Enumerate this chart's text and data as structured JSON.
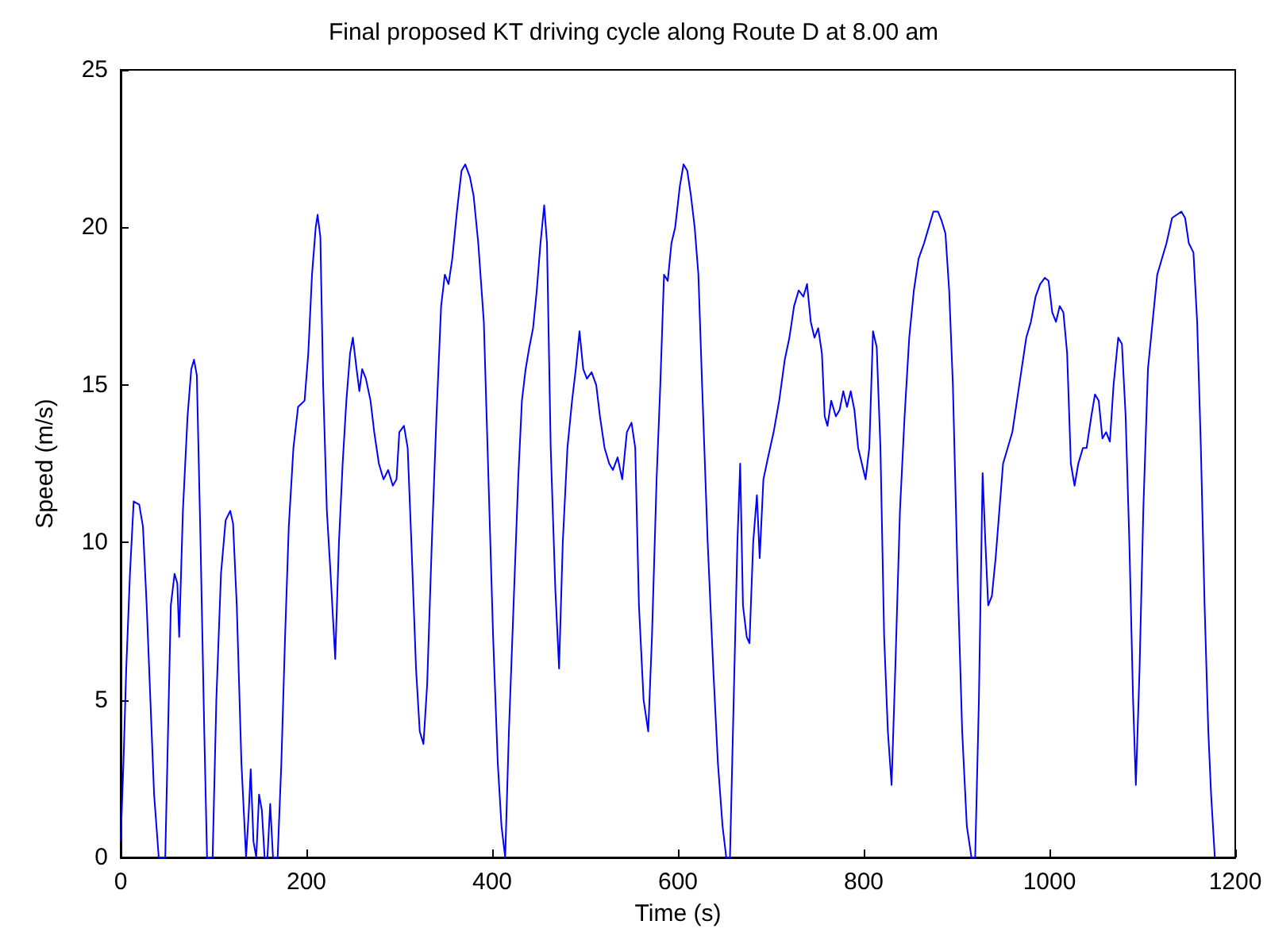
{
  "chart_data": {
    "type": "line",
    "title": "Final proposed KT driving cycle along Route D at 8.00 am",
    "xlabel": "Time (s)",
    "ylabel": "Speed (m/s)",
    "color": "#0000ff",
    "x": [
      0,
      3,
      6,
      10,
      14,
      20,
      24,
      28,
      32,
      36,
      41,
      48,
      51,
      54,
      58,
      61,
      63,
      67,
      72,
      76,
      79,
      82,
      86,
      90,
      93,
      99,
      103,
      108,
      113,
      118,
      121,
      125,
      130,
      135,
      138,
      140,
      143,
      146,
      149,
      152,
      155,
      158,
      161,
      164,
      169,
      173,
      177,
      181,
      186,
      191,
      198,
      202,
      206,
      210,
      212,
      215,
      218,
      222,
      226,
      231,
      235,
      239,
      243,
      247,
      250,
      254,
      257,
      260,
      264,
      269,
      273,
      278,
      283,
      288,
      293,
      297,
      300,
      305,
      309,
      313,
      318,
      322,
      326,
      330,
      335,
      340,
      345,
      349,
      353,
      357,
      362,
      367,
      371,
      376,
      380,
      385,
      391,
      396,
      401,
      406,
      410,
      414,
      418,
      423,
      428,
      432,
      436,
      440,
      444,
      448,
      452,
      456,
      459,
      463,
      468,
      472,
      476,
      481,
      486,
      490,
      494,
      498,
      502,
      507,
      512,
      516,
      521,
      526,
      530,
      535,
      540,
      545,
      550,
      554,
      558,
      563,
      568,
      572,
      577,
      581,
      585,
      589,
      593,
      597,
      602,
      606,
      610,
      614,
      618,
      622,
      626,
      632,
      638,
      643,
      648,
      652,
      656,
      660,
      664,
      667,
      670,
      674,
      677,
      681,
      685,
      688,
      692,
      697,
      703,
      709,
      715,
      720,
      725,
      730,
      735,
      739,
      743,
      747,
      751,
      755,
      758,
      761,
      765,
      770,
      774,
      778,
      782,
      786,
      790,
      794,
      798,
      802,
      806,
      810,
      814,
      818,
      822,
      826,
      830,
      834,
      839,
      844,
      849,
      854,
      859,
      865,
      870,
      875,
      880,
      884,
      888,
      892,
      896,
      901,
      906,
      911,
      916,
      920,
      924,
      928,
      931,
      934,
      938,
      942,
      946,
      950,
      955,
      960,
      965,
      970,
      975,
      980,
      985,
      990,
      995,
      999,
      1003,
      1007,
      1011,
      1015,
      1019,
      1023,
      1027,
      1031,
      1036,
      1040,
      1045,
      1049,
      1053,
      1057,
      1061,
      1065,
      1069,
      1074,
      1078,
      1082,
      1086,
      1090,
      1093,
      1097,
      1101,
      1106,
      1111,
      1116,
      1121,
      1126,
      1132,
      1137,
      1142,
      1146,
      1150,
      1155,
      1159,
      1163,
      1167,
      1171,
      1174,
      1177,
      1178
    ],
    "values": [
      0.5,
      3,
      6,
      9,
      11.3,
      11.2,
      10.5,
      8,
      5,
      2,
      0,
      0,
      4,
      8,
      9,
      8.7,
      7,
      11,
      14,
      15.5,
      15.8,
      15.3,
      10,
      4,
      0,
      0,
      5,
      9,
      10.7,
      11,
      10.6,
      8,
      3,
      0,
      1.5,
      2.8,
      0.5,
      0,
      2,
      1.5,
      0,
      0,
      1.7,
      0,
      0,
      3,
      7,
      10.5,
      13,
      14.3,
      14.5,
      16,
      18.5,
      20,
      20.4,
      19.7,
      15,
      11,
      9,
      6.3,
      10,
      12.5,
      14.5,
      16,
      16.5,
      15.5,
      14.8,
      15.5,
      15.2,
      14.5,
      13.5,
      12.5,
      12,
      12.3,
      11.8,
      12,
      13.5,
      13.7,
      13,
      10,
      6,
      4,
      3.6,
      5.5,
      10,
      14,
      17.5,
      18.5,
      18.2,
      19,
      20.5,
      21.8,
      22,
      21.6,
      21,
      19.5,
      17,
      12,
      7,
      3,
      1,
      0,
      4,
      8,
      12,
      14.5,
      15.5,
      16.2,
      16.8,
      18,
      19.5,
      20.7,
      19.5,
      13,
      8.5,
      6,
      10,
      13,
      14.5,
      15.5,
      16.7,
      15.5,
      15.2,
      15.4,
      15,
      14,
      13,
      12.5,
      12.3,
      12.7,
      12,
      13.5,
      13.8,
      13,
      8,
      5,
      4,
      7,
      12,
      15,
      18.5,
      18.3,
      19.5,
      20,
      21.3,
      22,
      21.8,
      21,
      20,
      18.5,
      15,
      10,
      6,
      3,
      1,
      0,
      0,
      5,
      10,
      12.5,
      8,
      7,
      6.8,
      10,
      11.5,
      9.5,
      12,
      12.7,
      13.5,
      14.5,
      15.8,
      16.5,
      17.5,
      18,
      17.8,
      18.2,
      17,
      16.5,
      16.8,
      16,
      14,
      13.7,
      14.5,
      14,
      14.2,
      14.8,
      14.3,
      14.8,
      14.2,
      13,
      12.5,
      12,
      13,
      16.7,
      16.2,
      13,
      7,
      4,
      2.3,
      6,
      11,
      14,
      16.5,
      18,
      19,
      19.5,
      20,
      20.5,
      20.5,
      20.2,
      19.8,
      18,
      15,
      9,
      4,
      1,
      0,
      0,
      5,
      12.2,
      10,
      8,
      8.3,
      9.5,
      11,
      12.5,
      13,
      13.5,
      14.5,
      15.5,
      16.5,
      17,
      17.8,
      18.2,
      18.4,
      18.3,
      17.3,
      17,
      17.5,
      17.3,
      16,
      12.5,
      11.8,
      12.5,
      13,
      13,
      14,
      14.7,
      14.5,
      13.3,
      13.5,
      13.2,
      15,
      16.5,
      16.3,
      14,
      10,
      5,
      2.3,
      6,
      11,
      15.5,
      17,
      18.5,
      19,
      19.5,
      20.3,
      20.4,
      20.5,
      20.3,
      19.5,
      19.2,
      17,
      13,
      8,
      4,
      2,
      0.5,
      0
    ],
    "xlim": [
      0,
      1200
    ],
    "xticks": [
      0,
      200,
      400,
      600,
      800,
      1000,
      1200
    ],
    "ylim": [
      0,
      25
    ],
    "yticks": [
      0,
      5,
      10,
      15,
      20,
      25
    ]
  }
}
